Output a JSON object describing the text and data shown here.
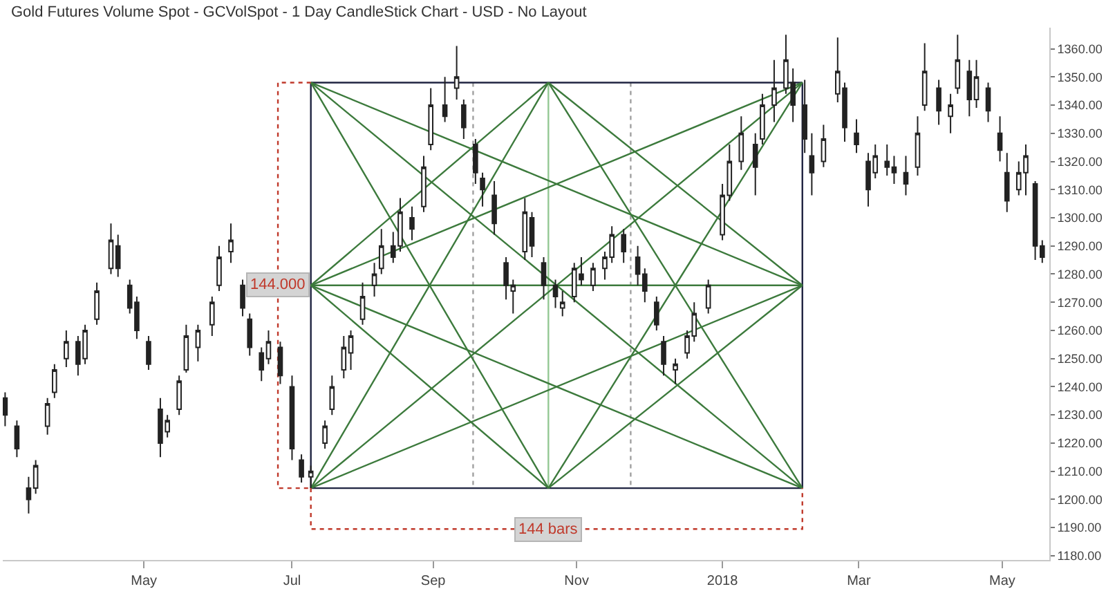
{
  "chart_data": {
    "type": "candlestick",
    "title": "Gold Futures Volume Spot - GCVolSpot - 1 Day CandleStick Chart - USD - No Layout",
    "color": "#222222",
    "x": [
      "2017-03-03",
      "2017-03-08",
      "2017-03-13",
      "2017-03-16",
      "2017-03-21",
      "2017-03-24",
      "2017-03-29",
      "2017-04-03",
      "2017-04-06",
      "2017-04-11",
      "2017-04-17",
      "2017-04-20",
      "2017-04-25",
      "2017-04-28",
      "2017-05-03",
      "2017-05-08",
      "2017-05-11",
      "2017-05-16",
      "2017-05-19",
      "2017-05-24",
      "2017-05-30",
      "2017-06-02",
      "2017-06-07",
      "2017-06-12",
      "2017-06-15",
      "2017-06-20",
      "2017-06-23",
      "2017-06-28",
      "2017-07-03",
      "2017-07-07",
      "2017-07-11",
      "2017-07-17",
      "2017-07-20",
      "2017-07-25",
      "2017-07-28",
      "2017-08-02",
      "2017-08-07",
      "2017-08-10",
      "2017-08-15",
      "2017-08-18",
      "2017-08-23",
      "2017-08-28",
      "2017-08-31",
      "2017-09-06",
      "2017-09-11",
      "2017-09-14",
      "2017-09-19",
      "2017-09-22",
      "2017-09-27",
      "2017-10-02",
      "2017-10-05",
      "2017-10-10",
      "2017-10-13",
      "2017-10-18",
      "2017-10-23",
      "2017-10-26",
      "2017-10-31",
      "2017-11-03",
      "2017-11-08",
      "2017-11-13",
      "2017-11-16",
      "2017-11-21",
      "2017-11-27",
      "2017-11-30",
      "2017-12-05",
      "2017-12-08",
      "2017-12-13",
      "2017-12-18",
      "2017-12-21",
      "2017-12-27",
      "2018-01-02",
      "2018-01-05",
      "2018-01-10",
      "2018-01-16",
      "2018-01-19",
      "2018-01-24",
      "2018-01-29",
      "2018-02-01",
      "2018-02-06",
      "2018-02-09",
      "2018-02-14",
      "2018-02-20",
      "2018-02-23",
      "2018-02-28",
      "2018-03-05",
      "2018-03-08",
      "2018-03-13",
      "2018-03-16",
      "2018-03-21",
      "2018-03-26",
      "2018-03-29",
      "2018-04-04",
      "2018-04-09",
      "2018-04-12",
      "2018-04-17",
      "2018-04-20",
      "2018-04-25",
      "2018-04-30",
      "2018-05-03",
      "2018-05-08",
      "2018-05-11",
      "2018-05-15",
      "2018-05-18"
    ],
    "ohlc": [
      [
        1236,
        1238,
        1226,
        1230
      ],
      [
        1226,
        1228,
        1215,
        1218
      ],
      [
        1204,
        1208,
        1195,
        1200
      ],
      [
        1204,
        1214,
        1202,
        1212
      ],
      [
        1226,
        1236,
        1223,
        1234
      ],
      [
        1238,
        1248,
        1236,
        1246
      ],
      [
        1250,
        1260,
        1247,
        1256
      ],
      [
        1256,
        1258,
        1244,
        1248
      ],
      [
        1250,
        1262,
        1248,
        1260
      ],
      [
        1264,
        1277,
        1262,
        1274
      ],
      [
        1282,
        1298,
        1280,
        1292
      ],
      [
        1290,
        1294,
        1279,
        1282
      ],
      [
        1276,
        1278,
        1266,
        1268
      ],
      [
        1270,
        1272,
        1257,
        1260
      ],
      [
        1256,
        1258,
        1246,
        1248
      ],
      [
        1232,
        1236,
        1215,
        1220
      ],
      [
        1224,
        1230,
        1222,
        1228
      ],
      [
        1232,
        1244,
        1230,
        1242
      ],
      [
        1246,
        1262,
        1245,
        1258
      ],
      [
        1254,
        1262,
        1249,
        1260
      ],
      [
        1262,
        1272,
        1258,
        1270
      ],
      [
        1276,
        1290,
        1274,
        1286
      ],
      [
        1288,
        1298,
        1284,
        1292
      ],
      [
        1276,
        1278,
        1265,
        1268
      ],
      [
        1264,
        1266,
        1251,
        1254
      ],
      [
        1252,
        1254,
        1242,
        1246
      ],
      [
        1250,
        1260,
        1248,
        1256
      ],
      [
        1254,
        1256,
        1241,
        1244
      ],
      [
        1240,
        1244,
        1214,
        1218
      ],
      [
        1214,
        1216,
        1206,
        1208
      ],
      [
        1208,
        1212,
        1204,
        1210
      ],
      [
        1220,
        1228,
        1218,
        1226
      ],
      [
        1232,
        1244,
        1230,
        1240
      ],
      [
        1246,
        1258,
        1243,
        1254
      ],
      [
        1252,
        1260,
        1246,
        1258
      ],
      [
        1264,
        1277,
        1262,
        1272
      ],
      [
        1276,
        1284,
        1272,
        1280
      ],
      [
        1282,
        1296,
        1280,
        1290
      ],
      [
        1290,
        1295,
        1284,
        1286
      ],
      [
        1290,
        1307,
        1288,
        1302
      ],
      [
        1300,
        1304,
        1292,
        1296
      ],
      [
        1304,
        1322,
        1302,
        1318
      ],
      [
        1326,
        1346,
        1324,
        1340
      ],
      [
        1340,
        1350,
        1334,
        1336
      ],
      [
        1346,
        1361,
        1342,
        1350
      ],
      [
        1340,
        1342,
        1328,
        1332
      ],
      [
        1326,
        1328,
        1312,
        1316
      ],
      [
        1314,
        1316,
        1304,
        1310
      ],
      [
        1308,
        1313,
        1294,
        1298
      ],
      [
        1284,
        1286,
        1271,
        1276
      ],
      [
        1274,
        1278,
        1266,
        1276
      ],
      [
        1288,
        1307,
        1285,
        1302
      ],
      [
        1300,
        1302,
        1286,
        1290
      ],
      [
        1284,
        1286,
        1271,
        1276
      ],
      [
        1276,
        1278,
        1268,
        1272
      ],
      [
        1268,
        1274,
        1265,
        1270
      ],
      [
        1272,
        1284,
        1270,
        1282
      ],
      [
        1280,
        1286,
        1276,
        1278
      ],
      [
        1276,
        1284,
        1274,
        1282
      ],
      [
        1282,
        1288,
        1278,
        1286
      ],
      [
        1286,
        1297,
        1284,
        1294
      ],
      [
        1294,
        1296,
        1284,
        1288
      ],
      [
        1286,
        1290,
        1276,
        1280
      ],
      [
        1280,
        1282,
        1270,
        1274
      ],
      [
        1270,
        1272,
        1260,
        1262
      ],
      [
        1256,
        1258,
        1244,
        1248
      ],
      [
        1246,
        1250,
        1241,
        1248
      ],
      [
        1252,
        1260,
        1250,
        1258
      ],
      [
        1258,
        1270,
        1256,
        1266
      ],
      [
        1268,
        1278,
        1266,
        1276
      ],
      [
        1294,
        1312,
        1292,
        1308
      ],
      [
        1308,
        1326,
        1306,
        1320
      ],
      [
        1320,
        1336,
        1317,
        1330
      ],
      [
        1326,
        1330,
        1308,
        1318
      ],
      [
        1328,
        1344,
        1326,
        1340
      ],
      [
        1340,
        1356,
        1334,
        1346
      ],
      [
        1346,
        1365,
        1344,
        1356
      ],
      [
        1348,
        1353,
        1334,
        1340
      ],
      [
        1340,
        1349,
        1323,
        1328
      ],
      [
        1322,
        1330,
        1308,
        1316
      ],
      [
        1320,
        1333,
        1318,
        1328
      ],
      [
        1344,
        1364,
        1341,
        1352
      ],
      [
        1346,
        1348,
        1327,
        1332
      ],
      [
        1330,
        1335,
        1323,
        1326
      ],
      [
        1320,
        1323,
        1304,
        1310
      ],
      [
        1316,
        1326,
        1314,
        1322
      ],
      [
        1320,
        1326,
        1315,
        1318
      ],
      [
        1318,
        1322,
        1312,
        1316
      ],
      [
        1316,
        1322,
        1308,
        1312
      ],
      [
        1318,
        1336,
        1315,
        1330
      ],
      [
        1340,
        1362,
        1338,
        1352
      ],
      [
        1346,
        1349,
        1333,
        1338
      ],
      [
        1336,
        1344,
        1330,
        1340
      ],
      [
        1346,
        1365,
        1344,
        1356
      ],
      [
        1352,
        1356,
        1336,
        1342
      ],
      [
        1342,
        1356,
        1339,
        1350
      ],
      [
        1346,
        1348,
        1334,
        1338
      ],
      [
        1330,
        1336,
        1320,
        1324
      ],
      [
        1316,
        1323,
        1302,
        1306
      ],
      [
        1310,
        1320,
        1308,
        1316
      ],
      [
        1316,
        1326,
        1308,
        1322
      ],
      [
        1312,
        1313,
        1285,
        1290
      ],
      [
        1290,
        1292,
        1284,
        1286
      ]
    ],
    "series": [
      {
        "type": "line",
        "x": [
          "2017-09-18",
          "2017-09-18"
        ],
        "values": [
          1348,
          1204
        ],
        "color": "#a0a0a0",
        "line_style": "dotted"
      },
      {
        "type": "line",
        "x": [
          "2017-11-24",
          "2017-11-24"
        ],
        "values": [
          1348,
          1204
        ],
        "color": "#a0a0a0",
        "line_style": "dotted"
      },
      {
        "type": "line",
        "x": [
          "2017-07-11",
          "2018-02-05"
        ],
        "values": [
          1348,
          1348
        ],
        "color": "#1f2340"
      },
      {
        "type": "line",
        "x": [
          "2017-07-11",
          "2018-02-05"
        ],
        "values": [
          1204,
          1204
        ],
        "color": "#1f2340"
      },
      {
        "type": "line",
        "x": [
          "2017-07-11",
          "2017-07-11"
        ],
        "values": [
          1348,
          1204
        ],
        "color": "#1f2340"
      },
      {
        "type": "line",
        "x": [
          "2018-02-05",
          "2018-02-05"
        ],
        "values": [
          1348,
          1204
        ],
        "color": "#1f2340"
      },
      {
        "type": "line",
        "x": [
          "2017-10-20",
          "2017-10-20"
        ],
        "values": [
          1348,
          1204
        ],
        "color": "#94c894"
      },
      {
        "type": "line",
        "x": [
          "2017-07-11",
          "2018-02-05"
        ],
        "values": [
          1276,
          1276
        ],
        "color": "#3c7a3c"
      },
      {
        "type": "line",
        "x": [
          "2017-07-11",
          "2018-02-05"
        ],
        "values": [
          1348,
          1204
        ],
        "color": "#3c7a3c"
      },
      {
        "type": "line",
        "x": [
          "2017-07-11",
          "2018-02-05"
        ],
        "values": [
          1204,
          1348
        ],
        "color": "#3c7a3c"
      },
      {
        "type": "line",
        "x": [
          "2017-07-11",
          "2018-02-05"
        ],
        "values": [
          1348,
          1276
        ],
        "color": "#3c7a3c"
      },
      {
        "type": "line",
        "x": [
          "2017-07-11",
          "2018-02-05"
        ],
        "values": [
          1204,
          1276
        ],
        "color": "#3c7a3c"
      },
      {
        "type": "line",
        "x": [
          "2017-07-11",
          "2018-02-05"
        ],
        "values": [
          1276,
          1348
        ],
        "color": "#3c7a3c"
      },
      {
        "type": "line",
        "x": [
          "2017-07-11",
          "2018-02-05"
        ],
        "values": [
          1276,
          1204
        ],
        "color": "#3c7a3c"
      },
      {
        "type": "line",
        "x": [
          "2017-07-11",
          "2017-10-20"
        ],
        "values": [
          1204,
          1348
        ],
        "color": "#3c7a3c"
      },
      {
        "type": "line",
        "x": [
          "2017-10-20",
          "2018-02-05"
        ],
        "values": [
          1348,
          1204
        ],
        "color": "#3c7a3c"
      },
      {
        "type": "line",
        "x": [
          "2017-07-11",
          "2017-10-20"
        ],
        "values": [
          1348,
          1204
        ],
        "color": "#3c7a3c"
      },
      {
        "type": "line",
        "x": [
          "2017-10-20",
          "2018-02-05"
        ],
        "values": [
          1204,
          1348
        ],
        "color": "#3c7a3c"
      },
      {
        "type": "line",
        "x": [
          "2017-07-11",
          "2017-10-20"
        ],
        "values": [
          1276,
          1348
        ],
        "color": "#3c7a3c"
      },
      {
        "type": "line",
        "x": [
          "2017-10-20",
          "2018-02-05"
        ],
        "values": [
          1348,
          1276
        ],
        "color": "#3c7a3c"
      },
      {
        "type": "line",
        "x": [
          "2017-07-11",
          "2017-10-20"
        ],
        "values": [
          1276,
          1204
        ],
        "color": "#3c7a3c"
      },
      {
        "type": "line",
        "x": [
          "2017-10-20",
          "2018-02-05"
        ],
        "values": [
          1204,
          1276
        ],
        "color": "#3c7a3c"
      },
      {
        "type": "line",
        "x": [
          "2017-07-11",
          "2017-06-27",
          "2017-06-27",
          "2017-07-11"
        ],
        "values": [
          1348,
          1348,
          1204,
          1204
        ],
        "color": "#c0392b",
        "line_style": "dotted"
      },
      {
        "type": "line",
        "x": [
          "2017-07-11",
          "2017-07-11",
          "2018-02-05",
          "2018-02-05"
        ],
        "values": [
          1204,
          1189.5,
          1189.5,
          1204
        ],
        "color": "#c0392b",
        "line_style": "dotted"
      }
    ],
    "annotations": [
      {
        "text": "144.000",
        "x": "2017-06-27",
        "y": 1276
      },
      {
        "text": "144 bars",
        "x": "2017-10-20",
        "y": 1189.5
      }
    ],
    "xlim": [
      "2017-03-02",
      "2018-05-21"
    ],
    "xticks": [
      {
        "value": "2017-05-01",
        "label": "May"
      },
      {
        "value": "2017-07-03",
        "label": "Jul"
      },
      {
        "value": "2017-09-01",
        "label": "Sep"
      },
      {
        "value": "2017-11-01",
        "label": "Nov"
      },
      {
        "value": "2018-01-02",
        "label": "2018"
      },
      {
        "value": "2018-03-01",
        "label": "Mar"
      },
      {
        "value": "2018-05-01",
        "label": "May"
      }
    ],
    "ylim": [
      1178.5,
      1367.5
    ],
    "yticks": [
      {
        "value": 1180,
        "label": "1180.00"
      },
      {
        "value": 1190,
        "label": "1190.00"
      },
      {
        "value": 1200,
        "label": "1200.00"
      },
      {
        "value": 1210,
        "label": "1210.00"
      },
      {
        "value": 1220,
        "label": "1220.00"
      },
      {
        "value": 1230,
        "label": "1230.00"
      },
      {
        "value": 1240,
        "label": "1240.00"
      },
      {
        "value": 1250,
        "label": "1250.00"
      },
      {
        "value": 1260,
        "label": "1260.00"
      },
      {
        "value": 1270,
        "label": "1270.00"
      },
      {
        "value": 1280,
        "label": "1280.00"
      },
      {
        "value": 1290,
        "label": "1290.00"
      },
      {
        "value": 1300,
        "label": "1300.00"
      },
      {
        "value": 1310,
        "label": "1310.00"
      },
      {
        "value": 1320,
        "label": "1320.00"
      },
      {
        "value": 1330,
        "label": "1330.00"
      },
      {
        "value": 1340,
        "label": "1340.00"
      },
      {
        "value": 1350,
        "label": "1350.00"
      },
      {
        "value": 1360,
        "label": "1360.00"
      }
    ],
    "grid": false
  }
}
